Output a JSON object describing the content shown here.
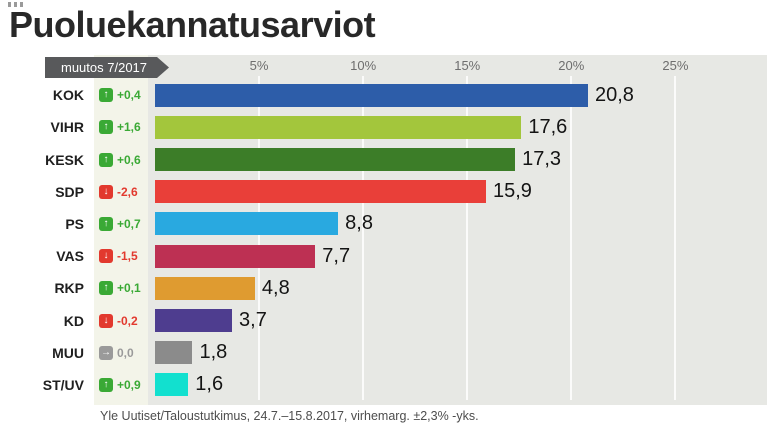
{
  "title": "Puoluekannatusarviot",
  "badge": {
    "label": "muutos 7/2017"
  },
  "axis": {
    "max": 29.4,
    "ticks": [
      "5%",
      "10%",
      "15%",
      "20%",
      "25%"
    ]
  },
  "footer": "Yle Uutiset/Taloustutkimus, 24.7.–15.8.2017, virhemarg. ±2,3% -yks.",
  "chart_data": {
    "type": "bar",
    "orientation": "horizontal",
    "title": "Puoluekannatusarviot",
    "subtitle": "muutos 7/2017",
    "categories": [
      "KOK",
      "VIHR",
      "KESK",
      "SDP",
      "PS",
      "VAS",
      "RKP",
      "KD",
      "MUU",
      "ST/UV"
    ],
    "values": [
      20.8,
      17.6,
      17.3,
      15.9,
      8.8,
      7.7,
      4.8,
      3.7,
      1.8,
      1.6
    ],
    "value_labels": [
      "20,8",
      "17,6",
      "17,3",
      "15,9",
      "8,8",
      "7,7",
      "4,8",
      "3,7",
      "1,8",
      "1,6"
    ],
    "changes": [
      "+0,4",
      "+1,6",
      "+0,6",
      "-2,6",
      "+0,7",
      "-1,5",
      "+0,1",
      "-0,2",
      "0,0",
      "+0,9"
    ],
    "change_directions": [
      "up",
      "up",
      "up",
      "down",
      "up",
      "down",
      "up",
      "down",
      "flat",
      "up"
    ],
    "bar_colors": [
      "#2d5da9",
      "#a3c63c",
      "#3c7d28",
      "#e93f39",
      "#29a9e0",
      "#bd3053",
      "#df9b30",
      "#4e3d8f",
      "#8b8b8b",
      "#12e0cf"
    ],
    "xlim": [
      0,
      29.4
    ],
    "gridlines": [
      5,
      10,
      15,
      20,
      25
    ],
    "grid": true,
    "legend": false,
    "source_note": "Yle Uutiset/Taloustutkimus, 24.7.–15.8.2017, virhemarg. ±2,3% -yks."
  },
  "icons": {
    "up": {
      "name": "up-arrow-icon",
      "glyph": "↑",
      "color": "#3aa935"
    },
    "down": {
      "name": "down-arrow-icon",
      "glyph": "↓",
      "color": "#e2392e"
    },
    "flat": {
      "name": "right-arrow-icon",
      "glyph": "→",
      "color": "#9a9a9a"
    }
  },
  "colors": {
    "chart_background": "#e7e8e4",
    "change_column_background": "#f3f4e9",
    "badge_background": "#58595b"
  }
}
